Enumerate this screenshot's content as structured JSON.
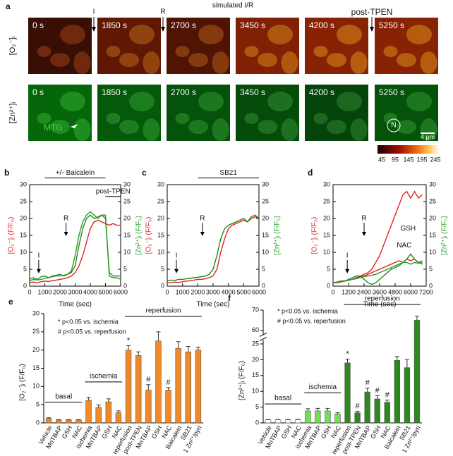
{
  "image_panel": {
    "label": "a",
    "title": "simulated I/R",
    "markers": [
      "I",
      "R",
      "post-TPEN"
    ],
    "rows": [
      {
        "label": "[O₂⁻]ᵢ",
        "times": [
          "0 s",
          "1850 s",
          "2700 s",
          "3450 s",
          "4200 s",
          "5250 s"
        ]
      },
      {
        "label": "[Zn²⁺]ᵢ",
        "times": [
          "0 s",
          "1850 s",
          "2700 s",
          "3450 s",
          "4200 s",
          "5250 s"
        ]
      }
    ],
    "annotations": [
      "MTG",
      "N"
    ],
    "scale_bar": "4 μm",
    "colorbar_ticks": [
      45,
      95,
      145,
      195,
      245
    ]
  },
  "chart_data": [
    {
      "type": "line",
      "panel_label": "b",
      "xlabel": "Time (sec)",
      "ylabel": "[O₂⁻]ᵢ (F/F₀)",
      "ylabel_color": "#e02020",
      "y2label": "[Zn²⁺]ᵢ (F/F₀)",
      "y2label_color": "#2a9a2a",
      "x": [
        0,
        250,
        500,
        750,
        1000,
        1250,
        1500,
        1750,
        2000,
        2250,
        2500,
        2750,
        3000,
        3250,
        3500,
        3750,
        4000,
        4250,
        4500,
        4750,
        5000,
        5250,
        5500,
        5750,
        6000
      ],
      "xlim": [
        0,
        6000
      ],
      "xticks": [
        0,
        1000,
        2000,
        3000,
        4000,
        5000,
        6000
      ],
      "ylim": [
        0,
        30
      ],
      "yticks": [
        0,
        5,
        10,
        15,
        20,
        25,
        30
      ],
      "y2lim": [
        0,
        30
      ],
      "y2ticks": [
        0,
        5,
        10,
        15,
        20,
        25,
        30
      ],
      "series": [
        {
          "color": "#e82020",
          "values": [
            1,
            1.2,
            1,
            1.3,
            1.5,
            1.4,
            1.6,
            1.8,
            2,
            2.2,
            2.5,
            3,
            4,
            6,
            9,
            13,
            17,
            19,
            19.5,
            19,
            18.5,
            18,
            18.5,
            18,
            18
          ]
        },
        {
          "color": "#1e8a1e",
          "axis": "y2",
          "values": [
            2,
            2.5,
            2,
            2.8,
            3,
            2.5,
            3,
            3.2,
            3.5,
            3,
            3.5,
            4,
            6,
            12,
            17,
            20,
            21,
            20,
            20.5,
            21,
            20,
            4,
            3,
            3,
            3
          ]
        },
        {
          "color": "#2a9a2a",
          "axis": "y2",
          "values": [
            1.5,
            2,
            1.8,
            2,
            2.3,
            2.5,
            2.8,
            3,
            3,
            3.2,
            3.5,
            4.5,
            9,
            15,
            19,
            21,
            22,
            21,
            20,
            21,
            21,
            3,
            2.5,
            2.5,
            2
          ]
        }
      ],
      "annotations": [
        {
          "text": "I",
          "x": 600,
          "y": 9,
          "arrow": true
        },
        {
          "text": "R",
          "x": 2400,
          "y": 20,
          "arrow": true
        }
      ],
      "spans": [
        {
          "text": "+/-  Baicalein",
          "x": [
            1000,
            5000
          ],
          "y": 32
        },
        {
          "text": "post-TPEN",
          "x": [
            5000,
            6000
          ],
          "y": 26.5
        }
      ]
    },
    {
      "type": "line",
      "panel_label": "c",
      "xlabel": "Time (sec)",
      "ylabel": "[O₂⁻]ᵢ (F/F₀)",
      "ylabel_color": "#e02020",
      "y2label": "[Zn²⁺]ᵢ (F/F₀)",
      "y2label_color": "#2a9a2a",
      "x": [
        0,
        250,
        500,
        750,
        1000,
        1250,
        1500,
        1750,
        2000,
        2250,
        2500,
        2750,
        3000,
        3250,
        3500,
        3750,
        4000,
        4250,
        4500,
        4750,
        5000,
        5250,
        5500,
        5750,
        6000
      ],
      "xlim": [
        0,
        6000
      ],
      "xticks": [
        0,
        1000,
        2000,
        3000,
        4000,
        5000,
        6000
      ],
      "ylim": [
        0,
        30
      ],
      "yticks": [
        0,
        5,
        10,
        15,
        20,
        25,
        30
      ],
      "y2lim": [
        0,
        30
      ],
      "y2ticks": [
        0,
        5,
        10,
        15,
        20,
        25,
        30
      ],
      "series": [
        {
          "color": "#e82020",
          "values": [
            1,
            1,
            1.2,
            1.1,
            1.3,
            1.5,
            1.6,
            1.8,
            2,
            2,
            2.2,
            2.5,
            3,
            5,
            10,
            14,
            17,
            18,
            18.5,
            19,
            19.5,
            19,
            20,
            20.5,
            20
          ]
        },
        {
          "color": "#1e8a1e",
          "axis": "y2",
          "values": [
            1.5,
            1.8,
            1.7,
            2,
            2,
            2.2,
            2.3,
            2.5,
            2.6,
            2.8,
            3,
            3.5,
            5,
            9,
            14,
            17,
            18,
            18.5,
            19,
            19.5,
            20,
            19,
            20.5,
            21,
            20
          ]
        }
      ],
      "annotations": [
        {
          "text": "I",
          "x": 600,
          "y": 9,
          "arrow": true
        },
        {
          "text": "R",
          "x": 2300,
          "y": 20,
          "arrow": true
        }
      ],
      "spans": [
        {
          "text": "SB21",
          "x": [
            2000,
            6000
          ],
          "y": 32
        }
      ]
    },
    {
      "type": "line",
      "panel_label": "d",
      "xlabel": "Time (sec)",
      "ylabel": "[O₂⁻]ᵢ (F/F₀)",
      "ylabel_color": "#e02020",
      "y2label": "[Zn²⁺]ᵢ (F/F₀)",
      "y2label_color": "#2a9a2a",
      "x": [
        0,
        300,
        600,
        900,
        1200,
        1500,
        1800,
        2100,
        2400,
        2700,
        3000,
        3300,
        3600,
        3900,
        4200,
        4500,
        4800,
        5100,
        5400,
        5700,
        6000,
        6300,
        6600,
        6900,
        7200
      ],
      "xlim": [
        0,
        7200
      ],
      "xticks": [
        0,
        1200,
        2400,
        3600,
        4800,
        6000,
        7200
      ],
      "ylim": [
        0,
        30
      ],
      "yticks": [
        0,
        5,
        10,
        15,
        20,
        25,
        30
      ],
      "y2lim": [
        0,
        30
      ],
      "y2ticks": [
        0,
        5,
        10,
        15,
        20,
        25,
        30
      ],
      "series": [
        {
          "color": "#e82020",
          "values": [
            1,
            1.2,
            1.5,
            1.6,
            1.8,
            2,
            2.5,
            3,
            3.5,
            4,
            5,
            7,
            9,
            12,
            15,
            18,
            21,
            24,
            27,
            28,
            26,
            28,
            26,
            27,
            null
          ]
        },
        {
          "color": "#e82020",
          "values": [
            1,
            1,
            1.2,
            1.5,
            1.8,
            2,
            2.5,
            2.8,
            3,
            3.5,
            4,
            4.5,
            5,
            5.5,
            6,
            6.5,
            7,
            7.5,
            7,
            8,
            7.5,
            8,
            7,
            7.5,
            null
          ]
        },
        {
          "color": "#1e8a1e",
          "axis": "y2",
          "values": [
            1,
            1.2,
            1.5,
            1.5,
            2,
            2.5,
            3,
            3,
            2,
            1,
            0.5,
            1,
            2,
            3,
            4,
            5,
            5.5,
            6,
            7,
            8,
            9.5,
            8,
            7,
            6.5,
            null
          ]
        },
        {
          "color": "#2a9a2a",
          "axis": "y2",
          "values": [
            1,
            1.1,
            1.3,
            1.5,
            1.7,
            2,
            2.2,
            2.5,
            2.8,
            3,
            3.2,
            3.5,
            4,
            4.5,
            5,
            5.5,
            6,
            6.5,
            7,
            7,
            6.5,
            7,
            6.8,
            7,
            null
          ]
        }
      ],
      "annotations": [
        {
          "text": "I",
          "x": 1100,
          "y": 9,
          "arrow": true
        },
        {
          "text": "R",
          "x": 2400,
          "y": 20,
          "arrow": true
        },
        {
          "text": "GSH",
          "x": 5800,
          "y": 17
        },
        {
          "text": "NAC",
          "x": 5500,
          "y": 12
        }
      ],
      "spans": []
    },
    {
      "type": "bar",
      "panel_label": "e",
      "ylabel": "[O₂⁻]ᵢ (F/F₀)",
      "categories": [
        "Vehicle",
        "MnTBAP",
        "GSH",
        "NAC",
        "ischemia",
        "MnTBAP",
        "GSH",
        "NAC",
        "reperfusion",
        "post-TPEN",
        "MnTBAP",
        "GSH",
        "NAC",
        "Baicalein",
        "SB21",
        "1 Zn²⁺/pyri"
      ],
      "values": [
        1.2,
        0.8,
        0.8,
        0.8,
        6.2,
        4.2,
        5.8,
        2.8,
        20,
        18.5,
        9,
        22.5,
        9,
        20.5,
        19.5,
        20
      ],
      "errors": [
        0.2,
        0.1,
        0.1,
        0.1,
        0.8,
        0.7,
        0.8,
        0.5,
        1.2,
        1,
        1.5,
        2.5,
        0.7,
        1.8,
        1.5,
        0.8
      ],
      "color": "#ee8a2a",
      "significance": [
        null,
        null,
        null,
        null,
        null,
        null,
        null,
        null,
        "*",
        null,
        "#",
        null,
        "#",
        null,
        null,
        null
      ],
      "groups": [
        "basal",
        "basal",
        "basal",
        "basal",
        "ischemia",
        "ischemia",
        "ischemia",
        "ischemia",
        "reperfusion",
        "reperfusion",
        "reperfusion",
        "reperfusion",
        "reperfusion",
        "reperfusion",
        "reperfusion",
        "reperfusion"
      ],
      "notes": [
        "* p<0.05 vs. ischemia",
        "# p<0.05 vs. reperfusion"
      ],
      "ylim": [
        0,
        30
      ],
      "yticks": [
        0,
        5,
        10,
        15,
        20,
        25,
        30
      ]
    },
    {
      "type": "bar",
      "panel_label": "f",
      "ylabel": "[Zn²⁺]ᵢ (F/F₀)",
      "categories": [
        "Vehicle",
        "MnTBAP",
        "GSH",
        "NAC",
        "ischemia",
        "MnTBAP",
        "GSH",
        "NAC",
        "reperfusion",
        "post-TPEN",
        "MnTBAP",
        "GSH",
        "NAC",
        "Baicalein",
        "SB21",
        "1 Zn²⁺/pyri"
      ],
      "values": [
        1,
        1,
        1,
        1,
        3.8,
        3.8,
        3.8,
        2.8,
        19,
        3.2,
        9.8,
        7.6,
        6.5,
        19.8,
        17.5,
        65
      ],
      "errors": [
        0.1,
        0.1,
        0.1,
        0.1,
        0.7,
        0.8,
        0.8,
        0.4,
        1.2,
        0.5,
        1.2,
        1,
        0.7,
        1.2,
        2.5,
        2
      ],
      "colors": [
        "#ffffff",
        "#ffffff",
        "#ffffff",
        "#ffffff",
        "#6ee24e",
        "#6ee24e",
        "#6ee24e",
        "#6ee24e",
        "#2a8a1c",
        "#2a8a1c",
        "#2a8a1c",
        "#2a8a1c",
        "#2a8a1c",
        "#2a8a1c",
        "#2a8a1c",
        "#2a8a1c"
      ],
      "significance": [
        null,
        null,
        null,
        null,
        null,
        null,
        null,
        null,
        "*",
        "#",
        "#",
        "#",
        "#",
        null,
        null,
        null
      ],
      "groups": [
        "basal",
        "basal",
        "basal",
        "basal",
        "ischemia",
        "ischemia",
        "ischemia",
        "ischemia",
        "reperfusion",
        "reperfusion",
        "reperfusion",
        "reperfusion",
        "reperfusion",
        "reperfusion",
        "reperfusion",
        "reperfusion"
      ],
      "notes": [
        "* p<0.05 vs. ischemia",
        "# p<0.05 vs. reperfusion"
      ],
      "ylim": [
        0,
        70
      ],
      "axis_break": [
        25,
        60
      ],
      "yticks": [
        0,
        5,
        10,
        15,
        20,
        25,
        60,
        70
      ]
    }
  ]
}
